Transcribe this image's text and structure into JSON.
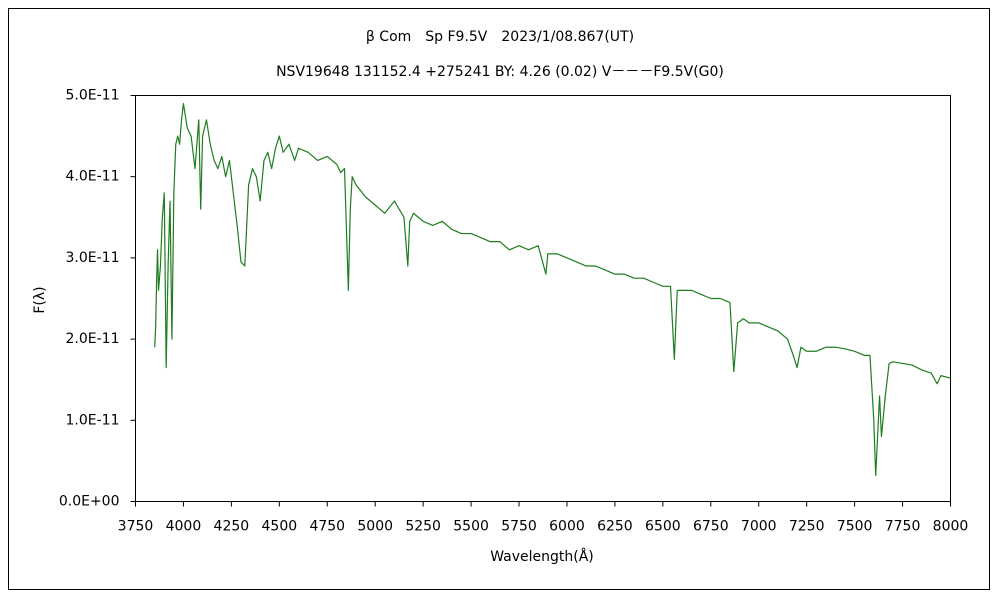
{
  "chart_data": {
    "type": "line",
    "title": "β Com　Sp F9.5V　2023/1/08.867(UT)",
    "subtitle": "NSV19648 131152.4 +275241 BY: 4.26 (0.02) V－－－F9.5V(G0)",
    "x_label": "Wavelength(Å)",
    "y_label": "F(λ)",
    "color": "#1e7d1e",
    "grid": false,
    "xlim": [
      3750,
      8000
    ],
    "xticks": [
      3750,
      4000,
      4250,
      4500,
      4750,
      5000,
      5250,
      5500,
      5750,
      6000,
      6250,
      6500,
      6750,
      7000,
      7250,
      7500,
      7750,
      8000
    ],
    "ylim": [
      0,
      5e-11
    ],
    "yticks": [
      {
        "value": 0,
        "label": "0.0E+00"
      },
      {
        "value": 1e-11,
        "label": "1.0E-11"
      },
      {
        "value": 2e-11,
        "label": "2.0E-11"
      },
      {
        "value": 3e-11,
        "label": "3.0E-11"
      },
      {
        "value": 4e-11,
        "label": "4.0E-11"
      },
      {
        "value": 5e-11,
        "label": "5.0E-11"
      }
    ],
    "x": [
      3850,
      3855,
      3860,
      3865,
      3870,
      3880,
      3890,
      3900,
      3910,
      3920,
      3930,
      3940,
      3950,
      3960,
      3970,
      3980,
      3990,
      4000,
      4010,
      4020,
      4040,
      4060,
      4080,
      4090,
      4100,
      4120,
      4140,
      4160,
      4180,
      4200,
      4220,
      4240,
      4260,
      4280,
      4300,
      4320,
      4340,
      4360,
      4380,
      4400,
      4420,
      4440,
      4460,
      4480,
      4500,
      4520,
      4550,
      4580,
      4600,
      4650,
      4700,
      4750,
      4800,
      4820,
      4840,
      4860,
      4870,
      4880,
      4900,
      4950,
      5000,
      5050,
      5100,
      5150,
      5170,
      5180,
      5200,
      5250,
      5300,
      5350,
      5400,
      5450,
      5500,
      5550,
      5600,
      5650,
      5700,
      5750,
      5800,
      5850,
      5890,
      5900,
      5950,
      6000,
      6050,
      6100,
      6150,
      6200,
      6250,
      6300,
      6350,
      6400,
      6450,
      6500,
      6540,
      6560,
      6575,
      6600,
      6650,
      6700,
      6750,
      6800,
      6850,
      6870,
      6890,
      6920,
      6950,
      7000,
      7050,
      7100,
      7150,
      7180,
      7200,
      7220,
      7250,
      7300,
      7350,
      7400,
      7450,
      7500,
      7550,
      7580,
      7600,
      7610,
      7630,
      7640,
      7660,
      7680,
      7700,
      7750,
      7800,
      7850,
      7900,
      7930,
      7950,
      8000
    ],
    "values": [
      1.9e-11,
      2.15e-11,
      2.7e-11,
      3.1e-11,
      2.6e-11,
      2.9e-11,
      3.5e-11,
      3.8e-11,
      1.65e-11,
      2.9e-11,
      3.7e-11,
      2e-11,
      3.8e-11,
      4.4e-11,
      4.5e-11,
      4.4e-11,
      4.7e-11,
      4.9e-11,
      4.75e-11,
      4.6e-11,
      4.5e-11,
      4.1e-11,
      4.7e-11,
      3.6e-11,
      4.5e-11,
      4.7e-11,
      4.4e-11,
      4.2e-11,
      4.1e-11,
      4.25e-11,
      4e-11,
      4.2e-11,
      3.8e-11,
      3.4e-11,
      2.95e-11,
      2.9e-11,
      3.9e-11,
      4.1e-11,
      4e-11,
      3.7e-11,
      4.2e-11,
      4.3e-11,
      4.1e-11,
      4.35e-11,
      4.5e-11,
      4.3e-11,
      4.4e-11,
      4.2e-11,
      4.35e-11,
      4.3e-11,
      4.2e-11,
      4.25e-11,
      4.15e-11,
      4.05e-11,
      4.1e-11,
      2.6e-11,
      3.6e-11,
      4e-11,
      3.9e-11,
      3.75e-11,
      3.65e-11,
      3.55e-11,
      3.7e-11,
      3.5e-11,
      2.9e-11,
      3.45e-11,
      3.55e-11,
      3.45e-11,
      3.4e-11,
      3.45e-11,
      3.35e-11,
      3.3e-11,
      3.3e-11,
      3.25e-11,
      3.2e-11,
      3.2e-11,
      3.1e-11,
      3.15e-11,
      3.1e-11,
      3.15e-11,
      2.8e-11,
      3.05e-11,
      3.05e-11,
      3e-11,
      2.95e-11,
      2.9e-11,
      2.9e-11,
      2.85e-11,
      2.8e-11,
      2.8e-11,
      2.75e-11,
      2.75e-11,
      2.7e-11,
      2.65e-11,
      2.65e-11,
      1.75e-11,
      2.6e-11,
      2.6e-11,
      2.6e-11,
      2.55e-11,
      2.5e-11,
      2.5e-11,
      2.45e-11,
      1.6e-11,
      2.2e-11,
      2.25e-11,
      2.2e-11,
      2.2e-11,
      2.15e-11,
      2.1e-11,
      2e-11,
      1.8e-11,
      1.65e-11,
      1.9e-11,
      1.85e-11,
      1.85e-11,
      1.9e-11,
      1.9e-11,
      1.88e-11,
      1.85e-11,
      1.8e-11,
      1.8e-11,
      1e-11,
      3.2e-12,
      1.3e-11,
      8e-12,
      1.3e-11,
      1.7e-11,
      1.72e-11,
      1.7e-11,
      1.68e-11,
      1.62e-11,
      1.58e-11,
      1.45e-11,
      1.55e-11,
      1.52e-11
    ]
  }
}
